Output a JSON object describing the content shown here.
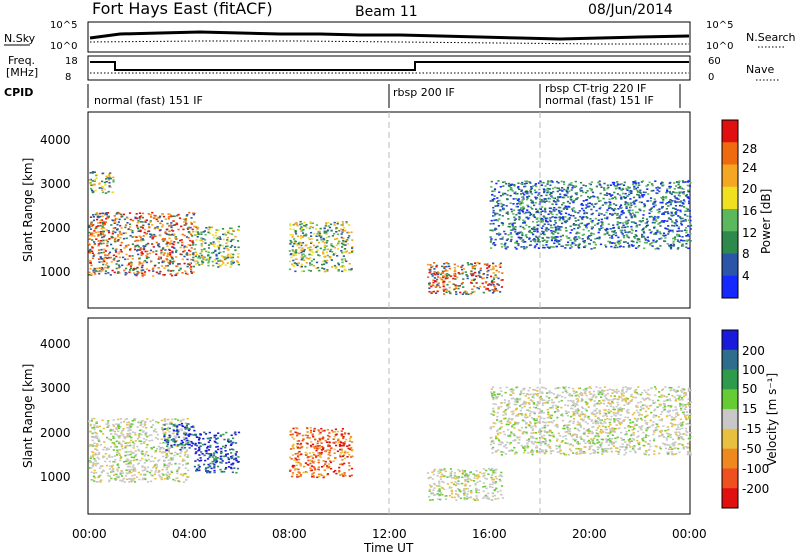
{
  "header": {
    "station": "Fort Hays East (fitACF)",
    "beam": "Beam 11",
    "date": "08/Jun/2014"
  },
  "nsky_strip": {
    "left_label": "N.Sky",
    "ticks": [
      "10^5",
      "10^0"
    ],
    "right_label": "N.Search",
    "right_ticks": [
      "10^5",
      "10^0"
    ]
  },
  "freq_strip": {
    "left_label_1": "Freq.",
    "left_label_2": "[MHz]",
    "ticks": [
      "18",
      "8"
    ],
    "right_label": "Nave",
    "right_ticks": [
      "60",
      "0"
    ]
  },
  "cpid_strip": {
    "label": "CPID",
    "segments": [
      {
        "label": "normal (fast) 151 IF",
        "start_hr": 0.0
      },
      {
        "label": "rbsp 200 IF",
        "start_hr": 12.0
      },
      {
        "label": "rbsp CT-trig 220 IF",
        "start_hr": 18.0
      },
      {
        "label": "normal (fast) 151 IF",
        "start_hr": 18.0
      }
    ]
  },
  "axes": {
    "xlabel": "Time UT",
    "x_ticks": [
      "00:00",
      "04:00",
      "08:00",
      "12:00",
      "16:00",
      "20:00",
      "00:00"
    ],
    "ylabel": "Slant Range [km]",
    "y_ticks": [
      "1000",
      "2000",
      "3000",
      "4000"
    ]
  },
  "power_colorbar": {
    "label": "Power [dB]",
    "ticks": [
      "4",
      "8",
      "12",
      "16",
      "20",
      "24",
      "28"
    ],
    "colors": [
      "#1428ff",
      "#2b55a8",
      "#2e8a4c",
      "#5cb85c",
      "#f0e020",
      "#f5a623",
      "#f06a10",
      "#e01010"
    ]
  },
  "velocity_colorbar": {
    "label": "Velocity [m s⁻¹]",
    "ticks": [
      "200",
      "100",
      "50",
      "15",
      "-15",
      "-50",
      "-100",
      "-200"
    ],
    "colors": [
      "#1a1adc",
      "#2e6e8c",
      "#2e9a4c",
      "#66cc33",
      "#c8c8c8",
      "#e8c040",
      "#f08820",
      "#f05020",
      "#e01010"
    ]
  },
  "chart_data": [
    {
      "type": "heatmap",
      "name": "power",
      "x_range_hr": [
        0,
        24
      ],
      "y_range_km": [
        180,
        4500
      ],
      "regions": [
        {
          "t0": 0.0,
          "t1": 4.2,
          "r0": 900,
          "r1": 2300,
          "level": "high"
        },
        {
          "t0": 0.0,
          "t1": 1.0,
          "r0": 2700,
          "r1": 3200,
          "level": "mid"
        },
        {
          "t0": 4.2,
          "t1": 6.0,
          "r0": 1100,
          "r1": 2000,
          "level": "mid"
        },
        {
          "t0": 8.0,
          "t1": 10.5,
          "r0": 1000,
          "r1": 2100,
          "level": "mid"
        },
        {
          "t0": 13.5,
          "t1": 16.5,
          "r0": 500,
          "r1": 1200,
          "level": "high"
        },
        {
          "t0": 16.0,
          "t1": 24.0,
          "r0": 1500,
          "r1": 3000,
          "level": "low"
        }
      ]
    },
    {
      "type": "heatmap",
      "name": "velocity",
      "x_range_hr": [
        0,
        24
      ],
      "y_range_km": [
        180,
        4500
      ],
      "regions": [
        {
          "t0": 0.0,
          "t1": 4.0,
          "r0": 900,
          "r1": 2300,
          "level": "near-zero"
        },
        {
          "t0": 3.0,
          "t1": 4.2,
          "r0": 1600,
          "r1": 2200,
          "level": "positive"
        },
        {
          "t0": 4.2,
          "t1": 6.0,
          "r0": 1100,
          "r1": 2000,
          "level": "positive"
        },
        {
          "t0": 8.0,
          "t1": 10.5,
          "r0": 1000,
          "r1": 2100,
          "level": "negative"
        },
        {
          "t0": 13.5,
          "t1": 16.5,
          "r0": 500,
          "r1": 1200,
          "level": "near-zero"
        },
        {
          "t0": 16.0,
          "t1": 24.0,
          "r0": 1500,
          "r1": 3000,
          "level": "near-zero"
        }
      ]
    }
  ]
}
